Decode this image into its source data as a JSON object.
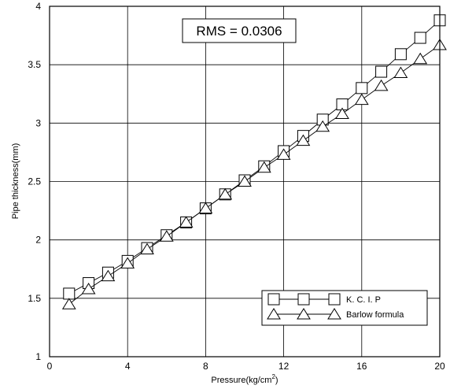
{
  "chart_data": {
    "type": "line",
    "title": "",
    "xlabel": "Pressure(kg/cm",
    "xlabel_superscript": "2",
    "xlabel_suffix": ")",
    "ylabel": "Pipe thickness(mm)",
    "xlim": [
      0,
      20
    ],
    "ylim": [
      1,
      4
    ],
    "xticks": [
      "0",
      "4",
      "8",
      "12",
      "16",
      "20"
    ],
    "yticks": [
      "1",
      "1.5",
      "2",
      "2.5",
      "3",
      "3.5",
      "4"
    ],
    "xtick_values": [
      0,
      4,
      8,
      12,
      16,
      20
    ],
    "ytick_values": [
      1,
      1.5,
      2,
      2.5,
      3,
      3.5,
      4
    ],
    "grid_x_values": [
      0,
      4,
      8,
      12,
      16,
      20
    ],
    "grid_y_values": [
      1,
      1.5,
      2,
      2.5,
      3,
      3.5,
      4
    ],
    "grid": true,
    "annotation": "RMS = 0.0306",
    "legend_position": "bottom-right",
    "series": [
      {
        "name": "K. C. I. P",
        "marker": "square",
        "x": [
          1,
          2,
          3,
          4,
          5,
          6,
          7,
          8,
          9,
          10,
          11,
          12,
          13,
          14,
          15,
          16,
          17,
          18,
          19,
          20
        ],
        "y": [
          1.54,
          1.63,
          1.72,
          1.82,
          1.93,
          2.04,
          2.15,
          2.27,
          2.39,
          2.51,
          2.63,
          2.76,
          2.89,
          3.03,
          3.16,
          3.3,
          3.44,
          3.59,
          3.73,
          3.88
        ]
      },
      {
        "name": "Barlow formula",
        "marker": "triangle",
        "x": [
          1,
          2,
          3,
          4,
          5,
          6,
          7,
          8,
          9,
          10,
          11,
          12,
          13,
          14,
          15,
          16,
          17,
          18,
          19,
          20
        ],
        "y": [
          1.45,
          1.58,
          1.69,
          1.8,
          1.92,
          2.03,
          2.15,
          2.27,
          2.39,
          2.5,
          2.62,
          2.73,
          2.85,
          2.97,
          3.08,
          3.2,
          3.32,
          3.43,
          3.55,
          3.67
        ]
      }
    ]
  }
}
